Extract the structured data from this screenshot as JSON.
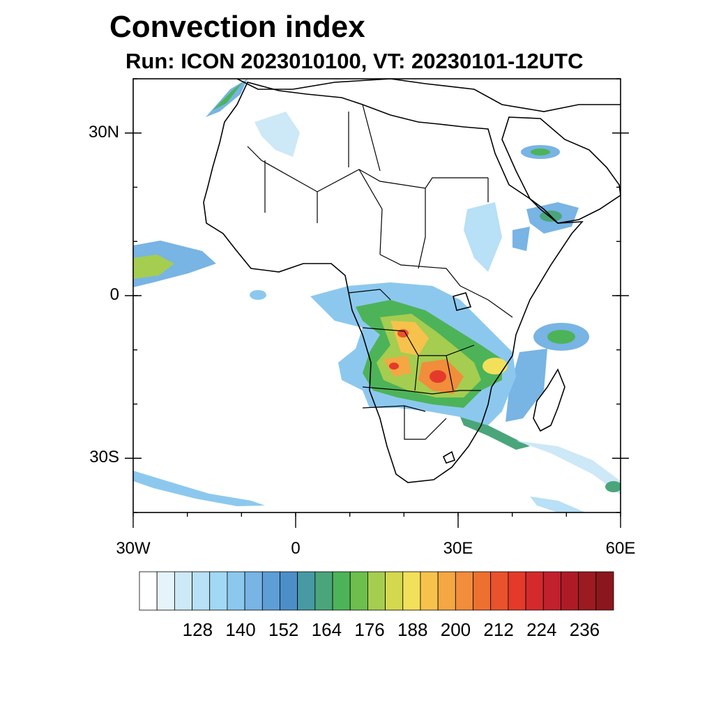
{
  "title": "Convection index",
  "subtitle": "Run: ICON 2023010100,  VT: 20230101-12UTC",
  "map": {
    "region": "Africa",
    "lon_range": [
      -30,
      60
    ],
    "lat_range": [
      -40,
      40
    ],
    "y_ticks": [
      {
        "lat": 30,
        "label": "30N"
      },
      {
        "lat": 0,
        "label": "0"
      },
      {
        "lat": -30,
        "label": "30S"
      }
    ],
    "x_ticks": [
      {
        "lon": -30,
        "label": "30W"
      },
      {
        "lon": 0,
        "label": "0"
      },
      {
        "lon": 30,
        "label": "30E"
      },
      {
        "lon": 60,
        "label": "60E"
      }
    ]
  },
  "colorbar": {
    "labels": [
      "128",
      "140",
      "152",
      "164",
      "176",
      "188",
      "200",
      "212",
      "224",
      "236"
    ],
    "colors": [
      "#ffffff",
      "#e6f3fb",
      "#cde8f7",
      "#b8e0f6",
      "#a2d8f4",
      "#8cc8ee",
      "#78b4e4",
      "#5e9ed6",
      "#4c8fc8",
      "#479aa3",
      "#4aa57b",
      "#4db359",
      "#6cbf4d",
      "#a5cd50",
      "#d4d84e",
      "#f2e05a",
      "#f7c24c",
      "#f4a742",
      "#f18d3b",
      "#ee7030",
      "#e9522c",
      "#e43a2b",
      "#d42a2d",
      "#c1202d",
      "#ae1b27",
      "#9c1a21",
      "#8b171d"
    ]
  }
}
